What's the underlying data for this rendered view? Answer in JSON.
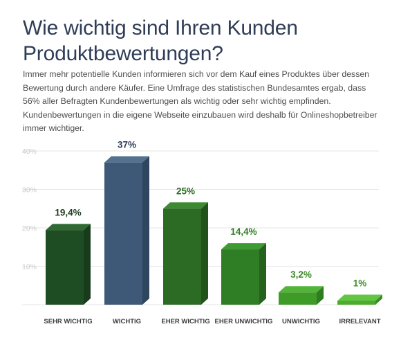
{
  "header": {
    "title_line1": "Wie wichtig sind Ihren Kunden",
    "title_line2": "Produktbewertungen?",
    "description": "Immer mehr potentielle Kunden informieren sich vor dem Kauf eines Produktes über dessen Bewertung durch andere Käufer. Eine Umfrage des statistischen Bundesamtes ergab, dass 56% aller Befragten Kundenbewertungen als wichtig oder sehr wichtig empfinden. Kundenbewertungen in die eigene Webseite einzubauen wird deshalb für Onlineshopbetreiber immer wichtiger."
  },
  "chart_data": {
    "type": "bar",
    "categories": [
      "SEHR WICHTIG",
      "WICHTIG",
      "EHER WICHTIG",
      "EHER UNWICHTIG",
      "UNWICHTIG",
      "IRRELEVANT"
    ],
    "values": [
      19.4,
      37,
      25,
      14.4,
      3.2,
      1
    ],
    "data_labels": [
      "19,4%",
      "37%",
      "25%",
      "14,4%",
      "3,2%",
      "1%"
    ],
    "ytick_labels": [
      "10%",
      "20%",
      "30%",
      "40%"
    ],
    "yticks": [
      10,
      20,
      30,
      40
    ],
    "ylim": [
      0,
      40
    ],
    "grid": true,
    "title": "",
    "xlabel": "",
    "ylabel": "",
    "colors": {
      "front": [
        "#1f4d23",
        "#3e5877",
        "#2c6b24",
        "#2f7d25",
        "#3e9b28",
        "#4aab2d"
      ],
      "top": [
        "#2f6934",
        "#547290",
        "#3e8a33",
        "#3f9a33",
        "#52b53a",
        "#62c543"
      ],
      "side": [
        "#173b1b",
        "#2f465f",
        "#21531b",
        "#24621d",
        "#307c20",
        "#3a8a24"
      ],
      "label": [
        "#1f3d22",
        "#2f3d57",
        "#2c6b24",
        "#2f7d25",
        "#3a8a25",
        "#3e9128"
      ]
    }
  }
}
